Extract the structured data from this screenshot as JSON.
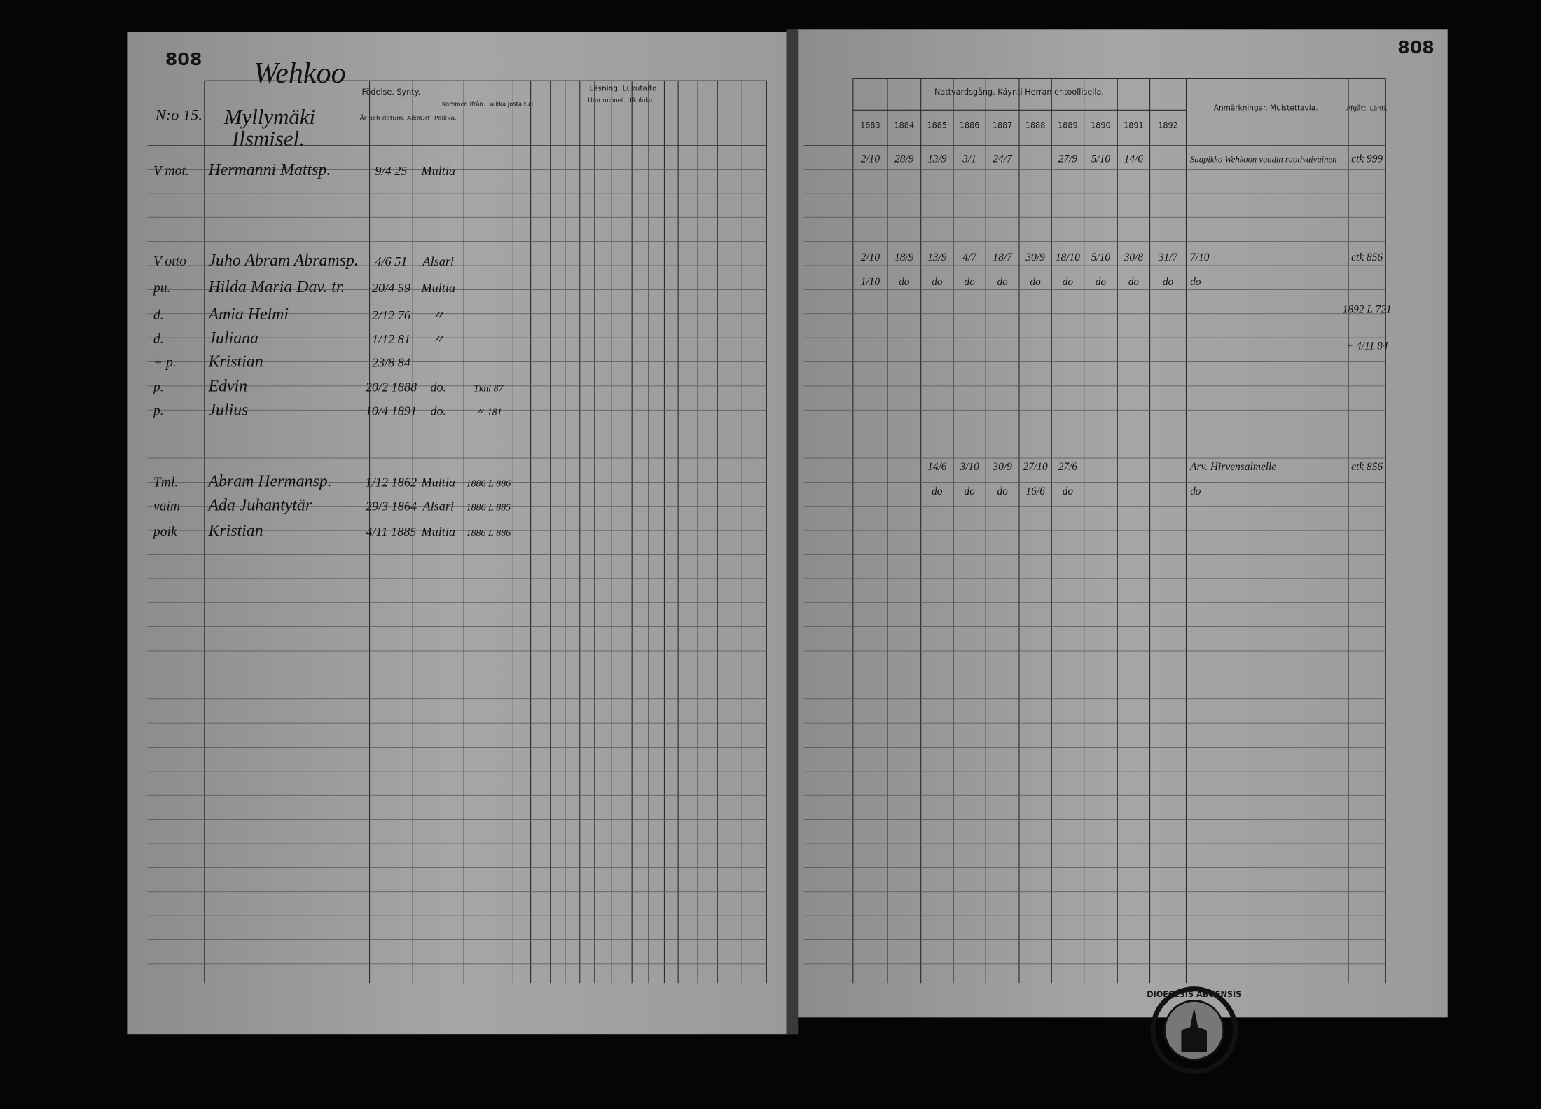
{
  "left_page": {
    "page_number": "808",
    "village": "Wehkoo",
    "house_number": "N:o 15.",
    "house_name": [
      "Myllymäki",
      "Ilsmisel."
    ],
    "headers": {
      "birth": "Födelse. Synty.",
      "date": "År och datum. Aika.",
      "place": "Ort. Paikka.",
      "from": "Kommen ifrån. Paikka josta tuli.",
      "reading": "Läsning. Lukutaito.",
      "memory": "Utur minnet. Ulkoluku."
    },
    "entries": [
      {
        "mark": "V mot.",
        "name": "Hermanni Mattsp.",
        "date": "9/4 25",
        "place": "Multia",
        "from": null
      },
      {
        "mark": "V otto",
        "name": "Juho Abram Abramsp.",
        "date": "4/6 51",
        "place": "Alsari",
        "from": null
      },
      {
        "mark": "pu.",
        "name": "Hilda Maria Dav. tr.",
        "date": "20/4 59",
        "place": "Multia",
        "from": null
      },
      {
        "mark": "d.",
        "name": "Amia Helmi",
        "date": "2/12 76",
        "place": "〃",
        "from": null
      },
      {
        "mark": "d.",
        "name": "Juliana",
        "date": "1/12 81",
        "place": "〃",
        "from": null
      },
      {
        "mark": "+ p.",
        "name": "Kristian",
        "date": "23/8 84",
        "place": null,
        "from": null
      },
      {
        "mark": "p.",
        "name": "Edvin",
        "date": "20/2 1888",
        "place": "do.",
        "from": "Tkhl 87"
      },
      {
        "mark": "p.",
        "name": "Julius",
        "date": "10/4 1891",
        "place": "do.",
        "from": "〃 181"
      },
      {
        "mark": "Tml.",
        "name": "Abram Hermansp.",
        "date": "1/12 1862",
        "place": "Multia",
        "from": "1886 L 886"
      },
      {
        "mark": "vaim",
        "name": "Ada Juhantytär",
        "date": "29/3 1864",
        "place": "Alsari",
        "from": "1886 L 885"
      },
      {
        "mark": "poik",
        "name": "Kristian",
        "date": "4/11 1885",
        "place": "Multia",
        "from": "1886 L 886"
      }
    ]
  },
  "right_page": {
    "page_number": "808",
    "communion_header": "Nattvardsgång. Käynti Herran ehtoollisella.",
    "years": [
      "1883",
      "1884",
      "1885",
      "1886",
      "1887",
      "1888",
      "1889",
      "1890",
      "1891",
      "1892"
    ],
    "notes_header": "Anmärkningar. Muistettavia.",
    "departed_header": "Afgått. Lähti.",
    "rows": [
      {
        "marks": [
          "2/10",
          "28/9",
          "13/9",
          "3/1",
          "24/7",
          null,
          "27/9",
          "5/10",
          "14/6",
          null
        ],
        "note": "Saapikko Wehkoon vuodin ruotivaivainen",
        "departed": "ctk 999"
      },
      {
        "marks": [
          "2/10",
          "18/9",
          "13/9",
          "4/7",
          "18/7",
          "30/9",
          "18/10",
          "5/10",
          "30/8",
          "31/7"
        ],
        "note": "7/10",
        "departed": "ctk 856"
      },
      {
        "marks": [
          "1/10",
          "do",
          "do",
          "do",
          "do",
          "do",
          "do",
          "do",
          "do",
          "do"
        ],
        "note": "do",
        "departed": null
      },
      {
        "marks": [
          null,
          null,
          null,
          null,
          null,
          null,
          null,
          null,
          null,
          null
        ],
        "note": null,
        "departed": "1892 L 721"
      },
      {
        "marks": [
          null,
          null,
          null,
          null,
          null,
          null,
          null,
          null,
          null,
          null
        ],
        "note": null,
        "departed": "+ 4/11 84"
      },
      {
        "marks": [
          null,
          null,
          "14/6",
          "3/10",
          "30/9",
          "27/10",
          "27/6",
          null,
          null,
          null
        ],
        "note": "Arv. Hirvensalmelle",
        "departed": "ctk 856"
      },
      {
        "marks": [
          null,
          null,
          "do",
          "do",
          "do",
          "16/6",
          "do",
          null,
          null,
          null
        ],
        "note": "do",
        "departed": null
      }
    ],
    "stamp": "DIOECESIS ABOENSIS"
  }
}
